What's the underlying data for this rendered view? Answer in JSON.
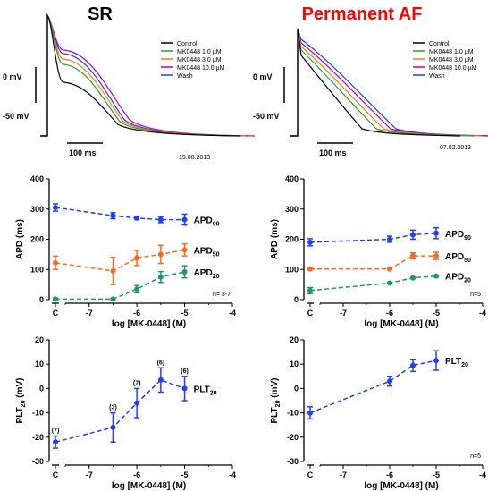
{
  "panels": {
    "sr": {
      "title": "SR",
      "title_color": "#000000",
      "date": "19.08.2013",
      "mv_label": "0 mV",
      "neg_label": "-50 mV",
      "scale_label": "100 ms",
      "legend": [
        {
          "label": "Control",
          "color": "#000000"
        },
        {
          "label": "MK0448   1.0 µM",
          "color": "#2ca02c"
        },
        {
          "label": "MK0448   3.0 µM",
          "color": "#ff7f0e"
        },
        {
          "label": "MK0448 10.0 µM",
          "color": "#c000c0"
        },
        {
          "label": "Wash",
          "color": "#1f3fff"
        }
      ]
    },
    "af": {
      "title": "Permanent AF",
      "title_color": "#ff0000",
      "date": "07.02.2013",
      "mv_label": "0 mV",
      "neg_label": "-50 mV",
      "scale_label": "100 ms",
      "legend": [
        {
          "label": "Control",
          "color": "#000000"
        },
        {
          "label": "MK0448   1.0 µM",
          "color": "#2ca02c"
        },
        {
          "label": "MK0448   3.0 µM",
          "color": "#ff7f0e"
        },
        {
          "label": "MK0448 10.0 µM",
          "color": "#c000c0"
        },
        {
          "label": "Wash",
          "color": "#1f3fff"
        }
      ]
    }
  },
  "chart_data": [
    {
      "id": "sr-apd",
      "type": "line",
      "xlabel": "log [MK-0448] (M)",
      "ylabel": "APD (ms)",
      "x_ticks": [
        "C",
        "-7",
        "-6",
        "-5",
        "-4"
      ],
      "y_ticks": [
        "0",
        "100",
        "200",
        "300",
        "400"
      ],
      "ylim": [
        0,
        400
      ],
      "xlim": [
        -8,
        -4
      ],
      "note": "n= 3-7",
      "series": [
        {
          "name": "APD90",
          "color": "#1f3fff",
          "x": [
            "C",
            -6.5,
            -6,
            -5.5,
            -5
          ],
          "y": [
            305,
            278,
            270,
            265,
            265
          ],
          "err": [
            12,
            10,
            5,
            10,
            18
          ]
        },
        {
          "name": "APD50",
          "color": "#ff6a1a",
          "x": [
            "C",
            -6.5,
            -6,
            -5.5,
            -5
          ],
          "y": [
            122,
            95,
            138,
            150,
            165
          ],
          "err": [
            22,
            45,
            25,
            30,
            20
          ]
        },
        {
          "name": "APD20",
          "color": "#1a9a6a",
          "x": [
            "C",
            -6.5,
            -6,
            -5.5,
            -5
          ],
          "y": [
            2,
            2,
            35,
            75,
            92
          ],
          "err": [
            3,
            3,
            12,
            18,
            20
          ]
        }
      ]
    },
    {
      "id": "af-apd",
      "type": "line",
      "xlabel": "log [MK-0448] (M)",
      "ylabel": "APD (ms)",
      "x_ticks": [
        "C",
        "-7",
        "-6",
        "-5",
        "-4"
      ],
      "y_ticks": [
        "0",
        "100",
        "200",
        "300",
        "400"
      ],
      "ylim": [
        0,
        400
      ],
      "xlim": [
        -8,
        -4
      ],
      "note": "n=5",
      "series": [
        {
          "name": "APD90",
          "color": "#1f3fff",
          "x": [
            "C",
            -6,
            -5.5,
            -5
          ],
          "y": [
            190,
            200,
            215,
            220
          ],
          "err": [
            12,
            10,
            15,
            18
          ]
        },
        {
          "name": "APD50",
          "color": "#ff6a1a",
          "x": [
            "C",
            -6,
            -5.5,
            -5
          ],
          "y": [
            102,
            102,
            145,
            145
          ],
          "err": [
            3,
            3,
            10,
            12
          ]
        },
        {
          "name": "APD20",
          "color": "#1a9a6a",
          "x": [
            "C",
            -6,
            -5.5,
            -5
          ],
          "y": [
            30,
            55,
            72,
            78
          ],
          "err": [
            10,
            3,
            3,
            3
          ]
        }
      ]
    },
    {
      "id": "sr-plt",
      "type": "line",
      "xlabel": "log [MK-0448] (M)",
      "ylabel": "PLT20 (mV)",
      "x_ticks": [
        "C",
        "-7",
        "-6",
        "-5",
        "-4"
      ],
      "y_ticks": [
        "-30",
        "-20",
        "-10",
        "0",
        "10",
        "20"
      ],
      "ylim": [
        -30,
        20
      ],
      "xlim": [
        -8,
        -4
      ],
      "series": [
        {
          "name": "PLT20",
          "color": "#1f3fff",
          "x": [
            "C",
            -6.5,
            -6,
            -5.5,
            -5
          ],
          "y": [
            -22,
            -16,
            -6,
            3.5,
            0
          ],
          "err": [
            2.5,
            6,
            6,
            5,
            5
          ],
          "n": [
            "(7)",
            "(3)",
            "(7)",
            "(6)",
            "(6)"
          ]
        }
      ]
    },
    {
      "id": "af-plt",
      "type": "line",
      "xlabel": "log [MK-0448] (M)",
      "ylabel": "PLT20 (mV)",
      "x_ticks": [
        "C",
        "-7",
        "-6",
        "-5",
        "-4"
      ],
      "y_ticks": [
        "-30",
        "-20",
        "-10",
        "0",
        "10",
        "20"
      ],
      "ylim": [
        -30,
        20
      ],
      "xlim": [
        -8,
        -4
      ],
      "note": "n=5",
      "series": [
        {
          "name": "PLT20",
          "color": "#1f3fff",
          "x": [
            "C",
            -6,
            -5.5,
            -5
          ],
          "y": [
            -10,
            3,
            9.5,
            11.5
          ],
          "err": [
            2.5,
            2,
            2.5,
            4
          ]
        }
      ]
    }
  ]
}
